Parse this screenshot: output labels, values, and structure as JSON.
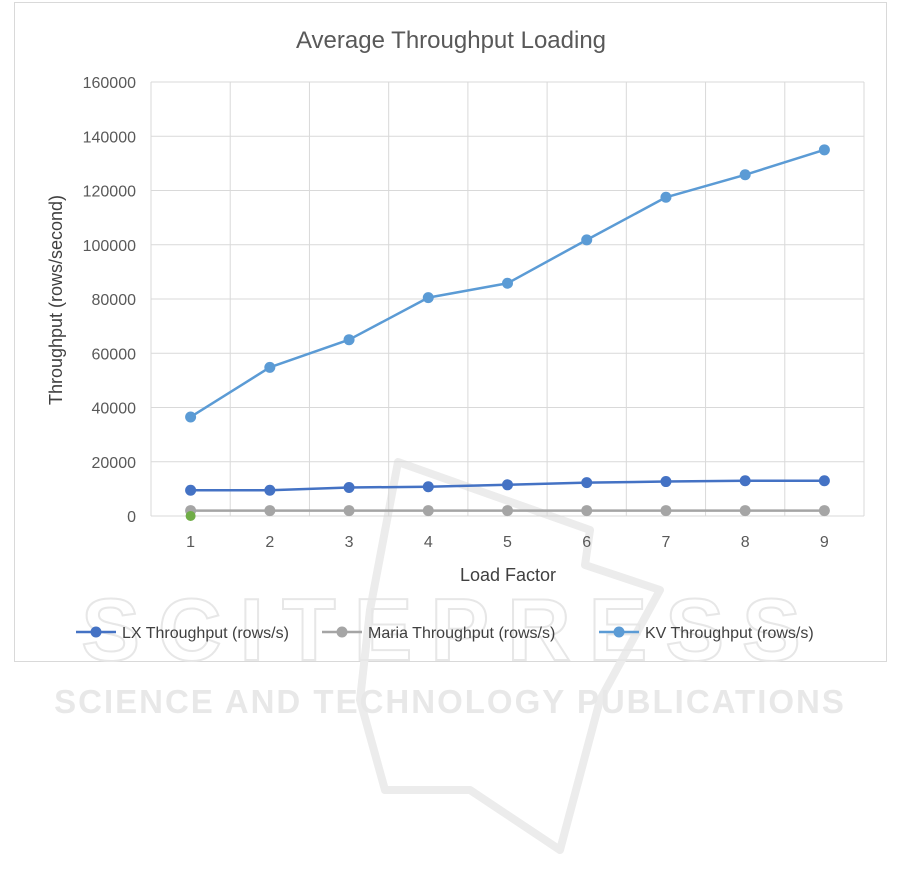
{
  "watermark": {
    "line1": "SCITEPRESS",
    "line2": "SCIENCE AND TECHNOLOGY PUBLICATIONS"
  },
  "chart_data": {
    "type": "line",
    "title": "Average Throughput Loading",
    "xlabel": "Load Factor",
    "ylabel": "Throughput (rows/second)",
    "categories": [
      "1",
      "2",
      "3",
      "4",
      "5",
      "6",
      "7",
      "8",
      "9"
    ],
    "ylim": [
      0,
      160000
    ],
    "yticks": [
      0,
      20000,
      40000,
      60000,
      80000,
      100000,
      120000,
      140000,
      160000
    ],
    "grid": true,
    "legend_position": "bottom",
    "series": [
      {
        "name": "LX Throughput (rows/s)",
        "color": "#4472c4",
        "values": [
          9500,
          9500,
          10500,
          10800,
          11500,
          12300,
          12700,
          13000,
          13000
        ]
      },
      {
        "name": "Maria Throughput (rows/s)",
        "color": "#a5a5a5",
        "values": [
          2000,
          2000,
          2000,
          2000,
          2000,
          2000,
          2000,
          2000,
          2000
        ]
      },
      {
        "name": "KV Throughput (rows/s)",
        "color": "#5b9bd5",
        "values": [
          36500,
          54800,
          65000,
          80500,
          85800,
          101800,
          117500,
          125800,
          135000
        ]
      }
    ],
    "extra_points": [
      {
        "x": "1",
        "y": 0,
        "color": "#70ad47"
      }
    ]
  }
}
